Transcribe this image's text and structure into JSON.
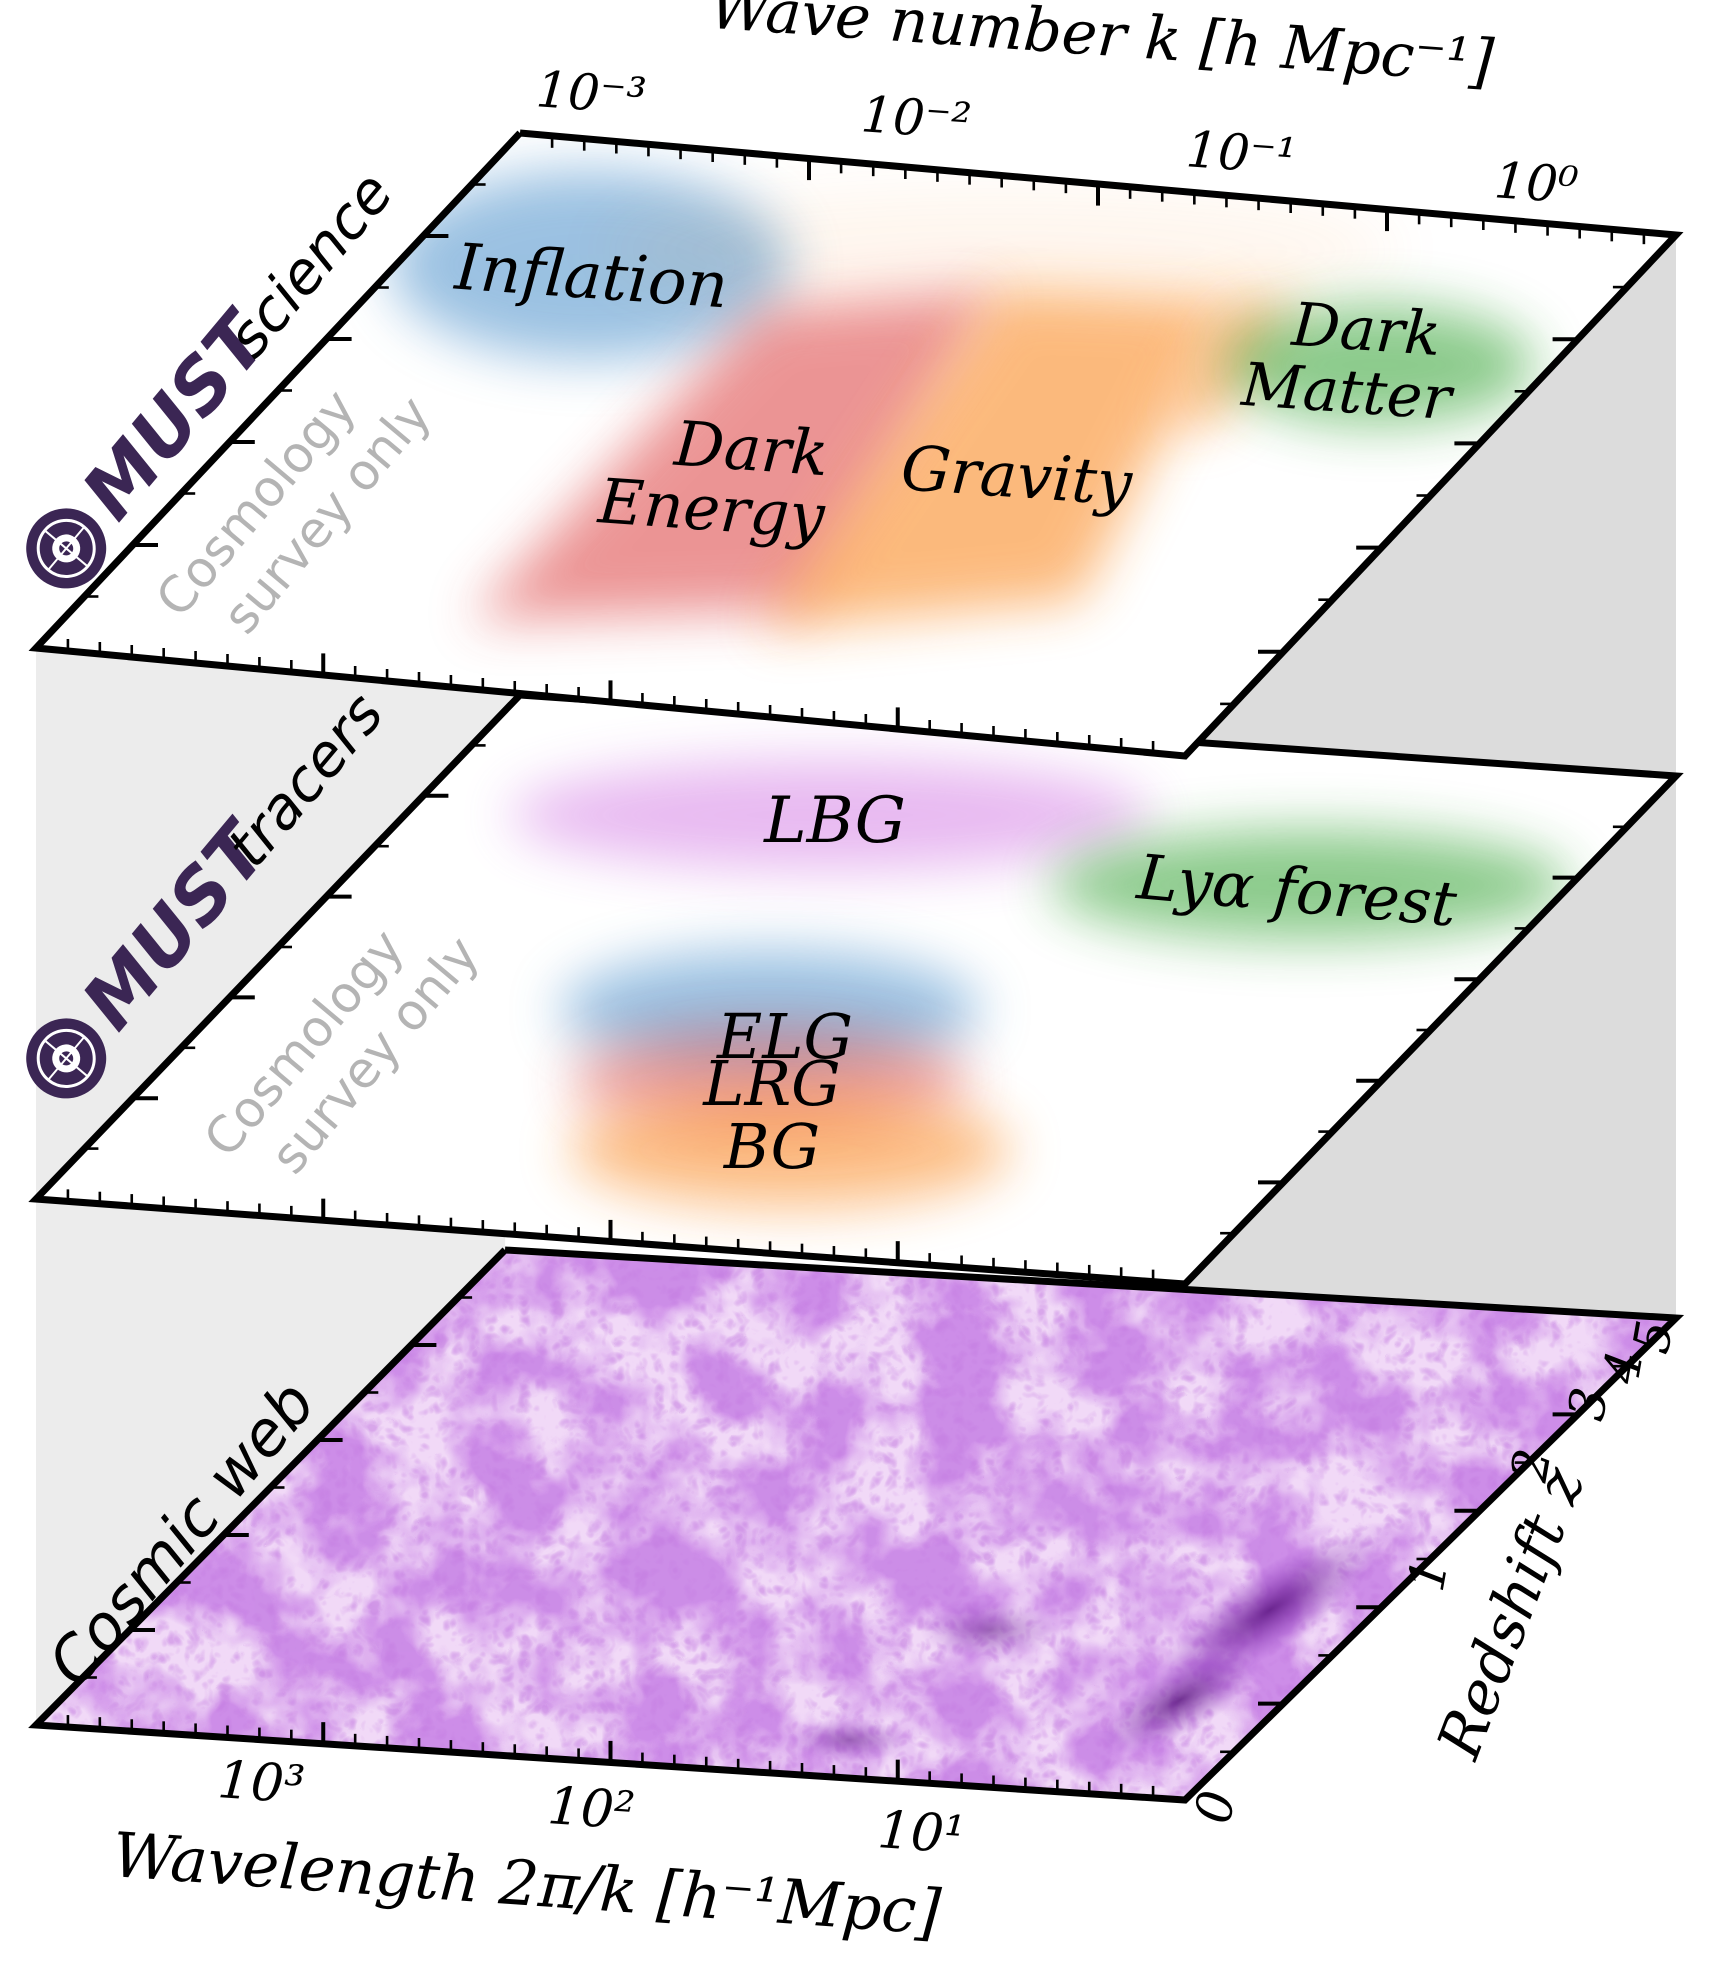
{
  "figure": {
    "top_axis_label": "Wave number k [h Mpc⁻¹]",
    "top_ticks": [
      "10⁻³",
      "10⁻²",
      "10⁻¹",
      "10⁰"
    ],
    "bottom_axis_label": "Wavelength 2π/k [h⁻¹Mpc]",
    "bottom_ticks": [
      "10³",
      "10²",
      "10¹"
    ],
    "right_axis_label": "Redshift z",
    "right_ticks": [
      "0",
      "1",
      "2",
      "3",
      "4",
      "5"
    ]
  },
  "layers": {
    "science": {
      "title_logo": "MUST",
      "title_word": "science",
      "note_line1": "Cosmology",
      "note_line2": "survey only",
      "regions": {
        "inflation": "Inflation",
        "dark_energy_line1": "Dark",
        "dark_energy_line2": "Energy",
        "gravity": "Gravity",
        "dark_matter_line1": "Dark",
        "dark_matter_line2": "Matter"
      }
    },
    "tracers": {
      "title_logo": "MUST",
      "title_word": "tracers",
      "note_line1": "Cosmology",
      "note_line2": "survey only",
      "regions": {
        "lbg": "LBG",
        "lya": "Lyα forest",
        "elg": "ELG",
        "lrg": "LRG",
        "bg": "BG"
      }
    },
    "cosmic_web": {
      "title": "Cosmic web"
    }
  },
  "colors": {
    "blue": "#4a8fca",
    "red": "#dc3c3c",
    "orange": "#fa8c28",
    "green": "#2ea02e",
    "violet": "#cc66e0",
    "web": "#8a2bc0",
    "logo": "#3b2654",
    "note_grey": "#b4b4b4",
    "wall_left": "#ececec",
    "wall_right": "#dcdcdc"
  }
}
